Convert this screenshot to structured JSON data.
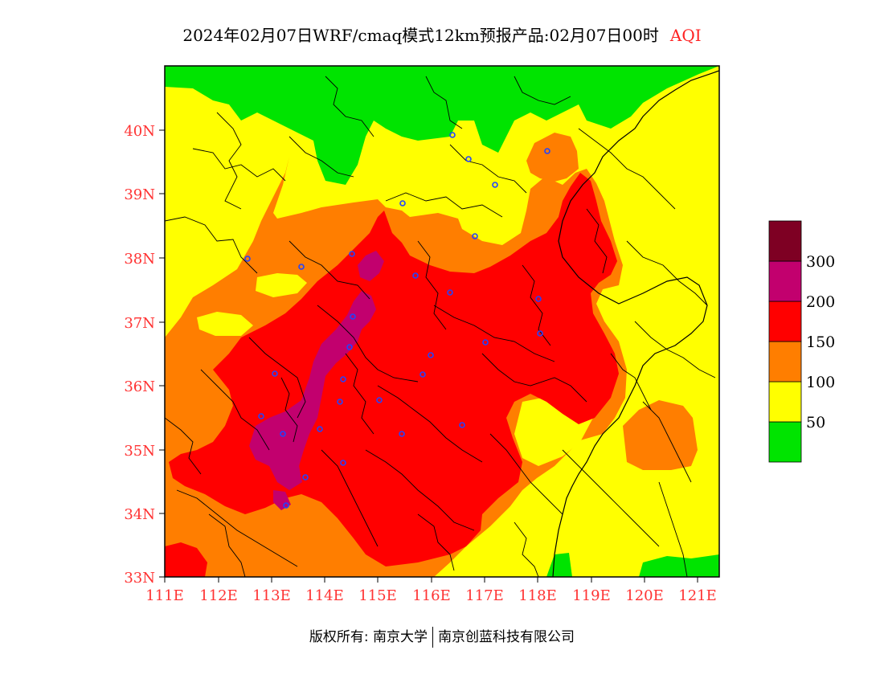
{
  "title": {
    "main": "2024年02月07日WRF/cmaq模式12km预报产品:02月07日00时",
    "pollutant": "AQI"
  },
  "map": {
    "lat_labels": [
      "40N",
      "39N",
      "38N",
      "37N",
      "36N",
      "35N",
      "34N",
      "33N"
    ],
    "lon_labels": [
      "111E",
      "112E",
      "113E",
      "114E",
      "115E",
      "116E",
      "117E",
      "118E",
      "119E",
      "120E",
      "121E"
    ],
    "extent": {
      "lon_min": 111,
      "lon_max": 121.4,
      "lat_min": 33,
      "lat_max": 41
    }
  },
  "legend": {
    "labels": [
      "50",
      "100",
      "150",
      "200",
      "300"
    ],
    "colors": [
      "#00e400",
      "#ffff00",
      "#ff7e00",
      "#ff0000",
      "#cc0077",
      "#7e0023"
    ]
  },
  "footer": {
    "copyright": "版权所有: 南京大学",
    "company": "南京创蓝科技有限公司"
  }
}
